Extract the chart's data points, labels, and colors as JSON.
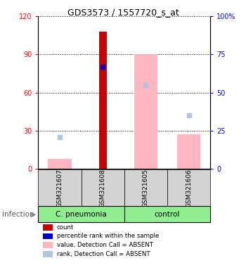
{
  "title": "GDS3573 / 1557720_s_at",
  "samples": [
    "GSM321607",
    "GSM321608",
    "GSM321605",
    "GSM321606"
  ],
  "ylim_left": [
    0,
    120
  ],
  "ylim_right": [
    0,
    100
  ],
  "yticks_left": [
    0,
    30,
    60,
    90,
    120
  ],
  "ytick_labels_left": [
    "0",
    "30",
    "60",
    "90",
    "120"
  ],
  "yticks_right": [
    0,
    25,
    50,
    75,
    100
  ],
  "ytick_labels_right": [
    "0",
    "25",
    "50",
    "75",
    "100%"
  ],
  "bar_count": {
    "GSM321607": null,
    "GSM321608": 108,
    "GSM321605": null,
    "GSM321606": null
  },
  "bar_value_absent": {
    "GSM321607": 8,
    "GSM321608": null,
    "GSM321605": 90,
    "GSM321606": 27
  },
  "dot_rank": {
    "GSM321607": null,
    "GSM321608": 80,
    "GSM321605": null,
    "GSM321606": null
  },
  "dot_rank_absent": {
    "GSM321607": 25,
    "GSM321608": null,
    "GSM321605": 66,
    "GSM321606": 42
  },
  "count_color": "#cc0000",
  "rank_color": "#0000cc",
  "value_absent_color": "#ffb6c1",
  "rank_absent_color": "#b0c4de",
  "group_spans": [
    {
      "label": "C. pneumonia",
      "start": 0,
      "end": 2,
      "color": "#90EE90"
    },
    {
      "label": "control",
      "start": 2,
      "end": 4,
      "color": "#90EE90"
    }
  ],
  "infection_label": "infection",
  "legend_items": [
    {
      "label": "count",
      "color": "#cc0000"
    },
    {
      "label": "percentile rank within the sample",
      "color": "#0000cc"
    },
    {
      "label": "value, Detection Call = ABSENT",
      "color": "#ffb6c1"
    },
    {
      "label": "rank, Detection Call = ABSENT",
      "color": "#b0c4de"
    }
  ]
}
